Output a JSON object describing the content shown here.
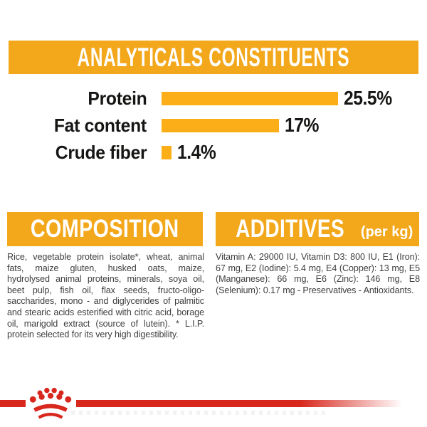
{
  "colors": {
    "banner_orange": "#F3A71B",
    "bar_orange": "#FBAE17",
    "label_black": "#161615",
    "body_gray": "#3E3E3D",
    "brand_red": "#D8281E",
    "banner_text": "#FFFFFF"
  },
  "header": {
    "title": "ANALYTICALS CONSTITUENTS"
  },
  "chart_data": {
    "type": "bar",
    "orientation": "horizontal",
    "title": "ANALYTICALS CONSTITUENTS",
    "categories": [
      "Protein",
      "Fat content",
      "Crude fiber"
    ],
    "values": [
      25.5,
      17,
      1.4
    ],
    "value_labels": [
      "25.5%",
      "17%",
      "1.4%"
    ],
    "xlim": [
      0,
      25.5
    ],
    "grid": false,
    "legend": "none",
    "bar_color": "#FBAE17"
  },
  "composition": {
    "title": "COMPOSITION",
    "body": "Rice, vegetable protein isolate*, wheat, animal fats, maize gluten, husked oats, maize, hydrolysed animal proteins, minerals, soya oil, beet pulp, fish oil, flax seeds, fructo-oligo-saccharides, mono - and diglycerides of palmitic and stearic acids esterified with citric acid, borage oil, marigold extract (source of lutein). * L.I.P. protein selected for its very high digestibility."
  },
  "additives": {
    "title": "ADDITIVES",
    "unit": "(per kg)",
    "body": "Vitamin A: 29000 IU, Vitamin D3: 800 IU, E1 (Iron): 67 mg, E2 (Iodine): 5.4 mg, E4 (Copper): 13 mg, E5 (Manganese): 66 mg, E6 (Zinc): 146 mg, E8 (Selenium): 0.17 mg - Preservatives - Antioxidants."
  },
  "footer": {
    "logo_name": "royal-canin-crown-logo"
  }
}
